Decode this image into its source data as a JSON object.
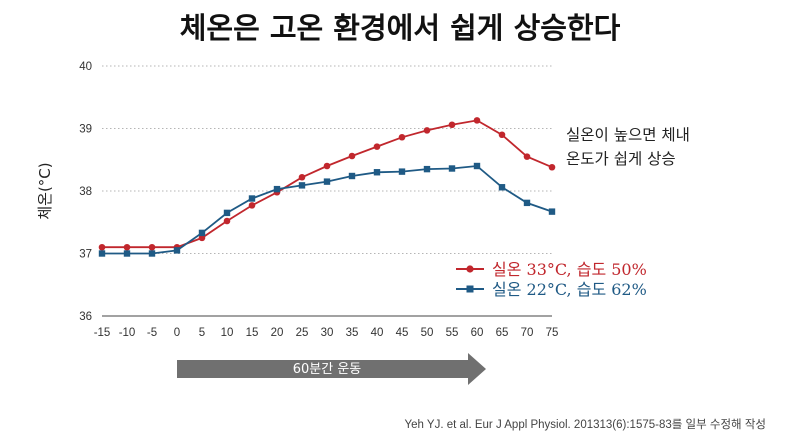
{
  "title": "체온은 고온 환경에서 쉽게 상승한다",
  "chart_data": {
    "type": "line",
    "ylabel": "체온(°C)",
    "xlabel": "",
    "ylim": [
      36,
      40
    ],
    "yticks": [
      36,
      37,
      38,
      39,
      40
    ],
    "grid": "horizontal dotted",
    "x": [
      -15,
      -10,
      -5,
      0,
      5,
      10,
      15,
      20,
      25,
      30,
      35,
      40,
      45,
      50,
      55,
      60,
      65,
      70,
      75
    ],
    "series": [
      {
        "name": "실온 33°C, 습도 50%",
        "color": "#c1272d",
        "marker": "circle",
        "values": [
          37.1,
          37.1,
          37.1,
          37.1,
          37.25,
          37.52,
          37.77,
          37.98,
          38.22,
          38.4,
          38.56,
          38.71,
          38.86,
          38.97,
          39.06,
          39.13,
          38.9,
          38.55,
          38.38
        ]
      },
      {
        "name": "실온 22°C, 습도 62%",
        "color": "#1f5a85",
        "marker": "square",
        "values": [
          37.0,
          37.0,
          37.0,
          37.05,
          37.33,
          37.65,
          37.88,
          38.03,
          38.09,
          38.15,
          38.24,
          38.3,
          38.31,
          38.35,
          38.36,
          38.4,
          38.06,
          37.81,
          37.67
        ]
      }
    ],
    "legend_position": "bottom-right",
    "annotation_lines": [
      "실온이 높으면 체내",
      "온도가 쉽게 상승"
    ],
    "arrow": {
      "label": "60분간 운동",
      "from": 0,
      "to": 60,
      "color": "#707070"
    }
  },
  "source": "Yeh YJ. et al. Eur J Appl Physiol. 201313(6):1575-83를 일부 수정해 작성"
}
